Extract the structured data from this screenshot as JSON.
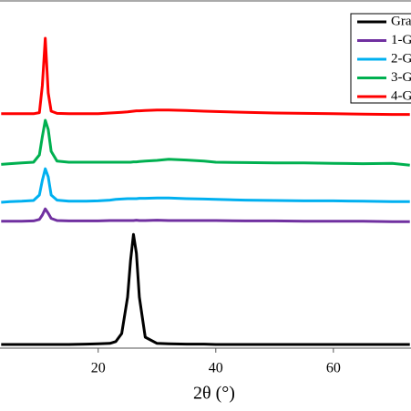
{
  "chart_data": {
    "type": "line",
    "x_label": "2θ (°)",
    "x": [
      3.5,
      5,
      7,
      9,
      10,
      10.5,
      11,
      11.5,
      12,
      13,
      15,
      18,
      20,
      22,
      23,
      24,
      25,
      25.5,
      26,
      26.5,
      27,
      28,
      30,
      32,
      35,
      38,
      40,
      45,
      50,
      55,
      60,
      65,
      70,
      73
    ],
    "series": [
      {
        "name": "Gra",
        "color": "#000000",
        "values": [
          1,
          1,
          1,
          1,
          1,
          1,
          1,
          1,
          1,
          1,
          1,
          1.1,
          1.2,
          1.3,
          1.8,
          4,
          14,
          24,
          31.2,
          26,
          14,
          3,
          1.3,
          1.2,
          1.1,
          1.1,
          1,
          1,
          1,
          1,
          1,
          1,
          1,
          1
        ]
      },
      {
        "name": "1-G",
        "color": "#7030a0",
        "values": [
          34.8,
          34.8,
          34.8,
          34.9,
          35.3,
          36.5,
          38.2,
          37,
          35.6,
          35,
          34.9,
          34.9,
          34.9,
          35,
          35,
          35,
          35,
          35,
          35,
          35.1,
          35,
          35,
          35.1,
          35,
          35,
          35,
          35,
          34.9,
          34.9,
          34.8,
          34.8,
          34.8,
          34.7,
          34.7
        ]
      },
      {
        "name": "2-G",
        "color": "#00b0f0",
        "values": [
          40,
          40.2,
          40.3,
          40.5,
          42,
          46,
          49.2,
          47,
          42,
          40.6,
          40.3,
          40.3,
          40.4,
          40.6,
          40.8,
          40.9,
          41,
          41,
          41,
          41,
          41.1,
          41.1,
          41.2,
          41.2,
          41,
          40.9,
          40.8,
          40.6,
          40.5,
          40.4,
          40.4,
          40.3,
          40.2,
          40.2
        ]
      },
      {
        "name": "3-G",
        "color": "#00b050",
        "values": [
          50.4,
          50.6,
          50.8,
          51,
          53,
          58,
          62.5,
          60,
          54,
          51.3,
          51,
          51,
          51,
          51,
          51,
          51,
          51,
          51,
          51.1,
          51.1,
          51.2,
          51.3,
          51.5,
          51.8,
          51.6,
          51.3,
          51,
          50.9,
          50.8,
          50.8,
          50.7,
          50.6,
          50.7,
          50.2
        ]
      },
      {
        "name": "4-G",
        "color": "#ff0000",
        "values": [
          64.3,
          64.3,
          64.3,
          64.3,
          64.6,
          72,
          85,
          70,
          65,
          64.4,
          64.3,
          64.3,
          64.3,
          64.5,
          64.6,
          64.7,
          64.8,
          64.9,
          65,
          65.1,
          65.1,
          65.2,
          65.3,
          65.3,
          65.2,
          65,
          64.9,
          64.7,
          64.5,
          64.4,
          64.3,
          64.2,
          64.1,
          64.1
        ]
      }
    ],
    "xlim": [
      3.3,
      73.2
    ],
    "xticks": [
      20,
      40,
      60
    ],
    "ylim": [
      0,
      95.5
    ],
    "legend": "top-right"
  }
}
